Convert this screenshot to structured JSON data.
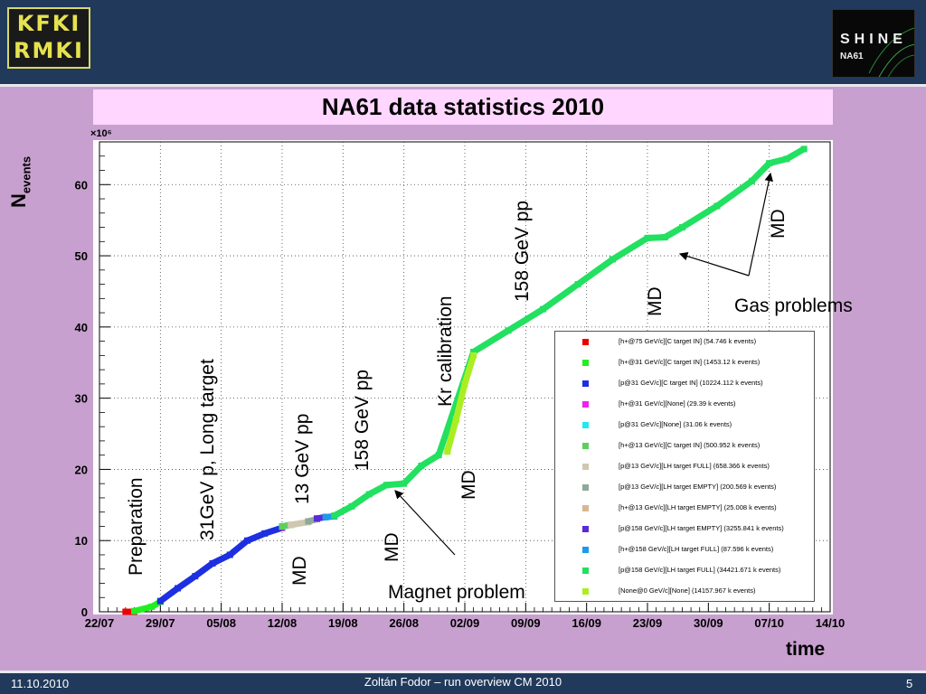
{
  "header": {
    "logo_left_top": "KFKI",
    "logo_left_bottom": "RMKI",
    "logo_right_top": "SHINE",
    "logo_right_bottom": "NA61"
  },
  "colors": {
    "header_bg": "#213a5c",
    "slide_bg": "#c8a0cf",
    "title_bg": "#ffd6ff"
  },
  "footer": {
    "date": "11.10.2010",
    "center": "Zoltán Fodor   –   run overview CM 2010",
    "page": "5"
  },
  "chart_data": {
    "type": "line",
    "title": "NA61 data statistics 2010",
    "ylabel": "N",
    "ylabel_sub": "events",
    "xlabel": "time",
    "y_multiplier": "×10⁶",
    "ylim": [
      0,
      66
    ],
    "xlim": [
      "2010-07-22",
      "2010-10-14"
    ],
    "x_ticks": [
      "22/07",
      "29/07",
      "05/08",
      "12/08",
      "19/08",
      "26/08",
      "02/09",
      "09/09",
      "16/09",
      "23/09",
      "30/09",
      "07/10",
      "14/10"
    ],
    "y_ticks": [
      0,
      10,
      20,
      30,
      40,
      50,
      60
    ],
    "grid": true,
    "legend_position": "bottom-right",
    "series": [
      {
        "name": "[h+@75 GeV/c][C target IN] (54.746 k events)",
        "color": "#ee0000",
        "x": [
          "2010-07-25",
          "2010-07-26"
        ],
        "y": [
          0,
          0
        ]
      },
      {
        "name": "[h+@31 GeV/c][C target IN] (1453.12 k events)",
        "color": "#22ee22",
        "x": [
          "2010-07-26",
          "2010-07-28",
          "2010-07-29"
        ],
        "y": [
          0.1,
          0.7,
          1.4
        ]
      },
      {
        "name": "[p@31 GeV/c][C target IN] (10224.112 k events)",
        "color": "#1d2fe0",
        "x": [
          "2010-07-29",
          "2010-07-31",
          "2010-08-02",
          "2010-08-04",
          "2010-08-06",
          "2010-08-08",
          "2010-08-10",
          "2010-08-12"
        ],
        "y": [
          1.5,
          3.3,
          5.0,
          6.8,
          8.0,
          10.0,
          11.0,
          11.8
        ]
      },
      {
        "name": "[h+@31 GeV/c][None] (29.39 k events)",
        "color": "#ee22ee",
        "x": [
          "2010-08-12"
        ],
        "y": [
          11.9
        ]
      },
      {
        "name": "[p@31 GeV/c][None] (31.06 k events)",
        "color": "#22e8f0",
        "x": [
          "2010-08-12"
        ],
        "y": [
          12.0
        ]
      },
      {
        "name": "[h+@13 GeV/c][C target IN] (500.952 k events)",
        "color": "#5fce5f",
        "x": [
          "2010-08-12",
          "2010-08-13"
        ],
        "y": [
          12.0,
          12.2
        ]
      },
      {
        "name": "[p@13 GeV/c][LH target FULL] (658.366 k events)",
        "color": "#cfc8b0",
        "x": [
          "2010-08-13",
          "2010-08-15"
        ],
        "y": [
          12.2,
          12.6
        ]
      },
      {
        "name": "[p@13 GeV/c][LH target EMPTY] (200.569 k events)",
        "color": "#8fa89a",
        "x": [
          "2010-08-15",
          "2010-08-16"
        ],
        "y": [
          12.7,
          13.0
        ]
      },
      {
        "name": "[h+@13 GeV/c][LH target EMPTY] (25.008 k events)",
        "color": "#d8b890",
        "x": [
          "2010-08-16"
        ],
        "y": [
          13.1
        ]
      },
      {
        "name": "[p@158 GeV/c][LH target EMPTY] (3255.841 k events)",
        "color": "#5a2ad8",
        "x": [
          "2010-08-16",
          "2010-08-17"
        ],
        "y": [
          13.1,
          13.3
        ]
      },
      {
        "name": "[h+@158 GeV/c][LH target FULL] (87.596 k events)",
        "color": "#1e9ae8",
        "x": [
          "2010-08-17",
          "2010-08-18"
        ],
        "y": [
          13.3,
          13.4
        ]
      },
      {
        "name": "[p@158 GeV/c][LH target FULL] (34421.671 k events)",
        "color": "#22e060",
        "x": [
          "2010-08-18",
          "2010-08-20",
          "2010-08-22",
          "2010-08-24",
          "2010-08-26",
          "2010-08-28",
          "2010-08-30",
          "2010-09-03",
          "2010-09-07",
          "2010-09-11",
          "2010-09-15",
          "2010-09-19",
          "2010-09-23",
          "2010-09-25",
          "2010-09-27",
          "2010-10-01",
          "2010-10-05",
          "2010-10-07",
          "2010-10-09",
          "2010-10-11"
        ],
        "y": [
          13.5,
          14.8,
          16.5,
          17.8,
          18.0,
          20.5,
          22.0,
          36.5,
          39.5,
          42.5,
          46.0,
          49.5,
          52.5,
          52.6,
          54.0,
          57.0,
          60.5,
          63.0,
          63.6,
          65.0
        ]
      },
      {
        "name": "[None@0 GeV/c][None] (14157.967 k events)",
        "color": "#aaee22",
        "x": [
          "2010-08-31",
          "2010-09-01",
          "2010-09-02",
          "2010-09-03"
        ],
        "y": [
          22.5,
          27.0,
          32.0,
          36.0
        ]
      }
    ],
    "annotations": [
      "Preparation",
      "31GeV p, Long target",
      "13 GeV pp",
      "MD",
      "158 GeV pp",
      "MD",
      "Magnet problem",
      "Kr calibration",
      "MD",
      "158 GeV pp",
      "MD",
      "MD",
      "Gas problems"
    ]
  }
}
